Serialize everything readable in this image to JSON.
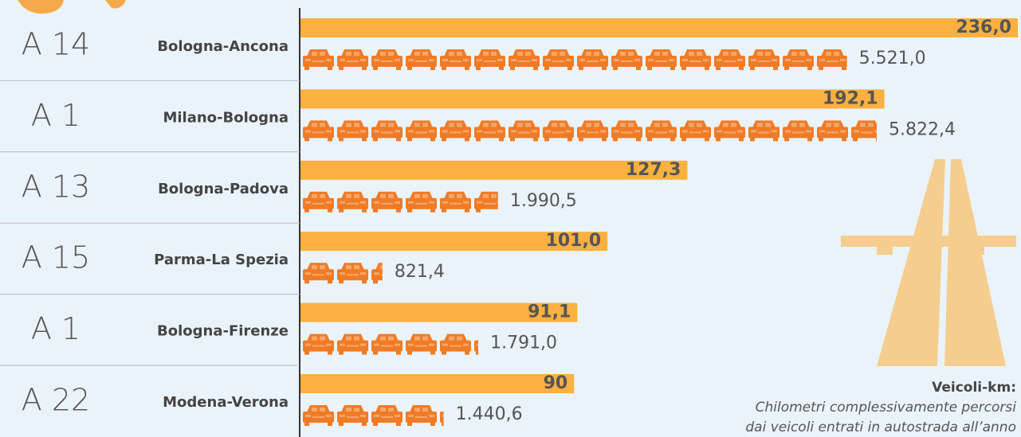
{
  "chart_data": {
    "type": "bar",
    "codes": [
      "A 14",
      "A 1",
      "A 13",
      "A 15",
      "A 1",
      "A 22"
    ],
    "categories": [
      "Bologna-Ancona",
      "Milano-Bologna",
      "Bologna-Padova",
      "Parma-La Spezia",
      "Bologna-Firenze",
      "Modena-Verona"
    ],
    "values": [
      236.0,
      192.1,
      127.3,
      101.0,
      91.1,
      90
    ],
    "value_labels": [
      "236,0",
      "192,1",
      "127,3",
      "101,0",
      "91,1",
      "90"
    ],
    "color": "#fbb040",
    "vehicle_km": {
      "title": "Veicoli-km:",
      "description": [
        "Chilometri complessivamente percorsi",
        "dai veicoli entrati in autostrada all’anno"
      ],
      "values": [
        5521.0,
        5822.4,
        1990.5,
        821.4,
        1791.0,
        1440.6
      ],
      "value_labels": [
        "5.521,0",
        "5.822,4",
        "1.990,5",
        "821,4",
        "1.791,0",
        "1.440,6"
      ],
      "color": "#f07b26"
    }
  }
}
